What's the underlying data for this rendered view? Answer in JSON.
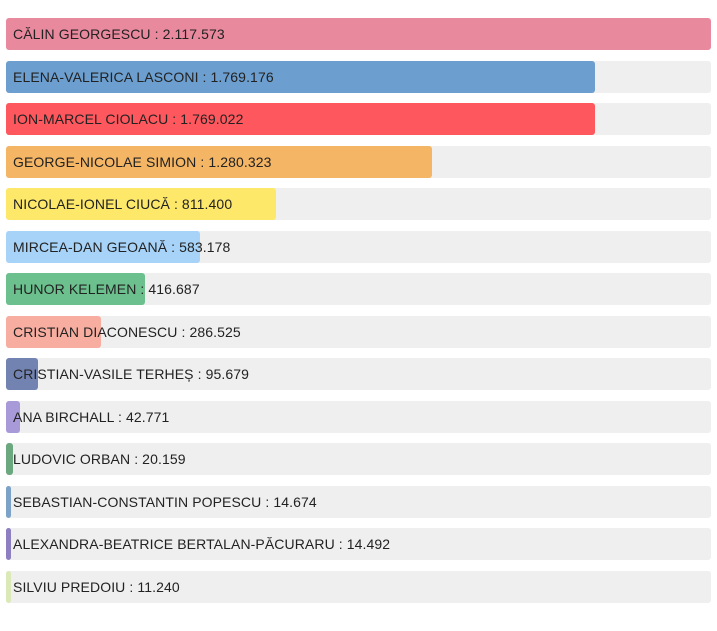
{
  "chart_data": {
    "type": "bar",
    "orientation": "horizontal",
    "label_separator": " : ",
    "grid": false,
    "legend": "none",
    "categories": [
      "CĂLIN GEORGESCU",
      "ELENA-VALERICA LASCONI",
      "ION-MARCEL CIOLACU",
      "GEORGE-NICOLAE SIMION",
      "NICOLAE-IONEL CIUCĂ",
      "MIRCEA-DAN GEOANĂ",
      "HUNOR KELEMEN",
      "CRISTIAN DIACONESCU",
      "CRISTIAN-VASILE TERHEȘ",
      "ANA BIRCHALL",
      "LUDOVIC ORBAN",
      "SEBASTIAN-CONSTANTIN POPESCU",
      "ALEXANDRA-BEATRICE BERTALAN-PĂCURARU",
      "SILVIU PREDOIU"
    ],
    "values": [
      2117573,
      1769176,
      1769022,
      1280323,
      811400,
      583178,
      416687,
      286525,
      95679,
      42771,
      20159,
      14674,
      14492,
      11240
    ],
    "value_labels": [
      "2.117.573",
      "1.769.176",
      "1.769.022",
      "1.280.323",
      "811.400",
      "583.178",
      "416.687",
      "286.525",
      "95.679",
      "42.771",
      "20.159",
      "14.674",
      "14.492",
      "11.240"
    ],
    "colors": [
      "#e9899e",
      "#6c9fcf",
      "#fe575d",
      "#f4b565",
      "#fde86a",
      "#a7d3f8",
      "#6cc08e",
      "#f7aea1",
      "#7283b2",
      "#a89ad9",
      "#6ca87f",
      "#7ca3c7",
      "#8d7fc0",
      "#dbe9b8"
    ],
    "track_color": "#efefef",
    "xlim": [
      0,
      2117573
    ]
  }
}
